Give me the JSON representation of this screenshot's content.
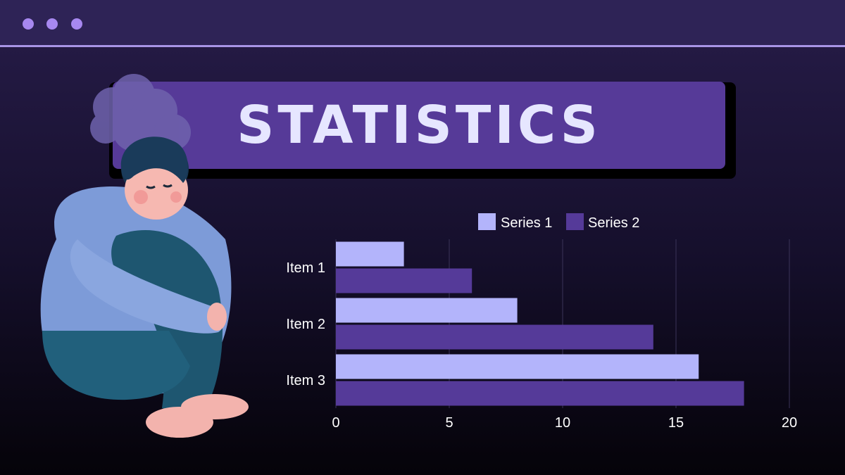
{
  "window": {
    "dots": [
      "dot-1",
      "dot-2",
      "dot-3"
    ]
  },
  "slide": {
    "title": "STATISTICS"
  },
  "colors": {
    "series1": "#b3b4fb",
    "series2": "#553a99",
    "background": "#150f2b",
    "title_box": "#563a98"
  },
  "illustration": {
    "icon": "sad-person-icon"
  },
  "chart_data": {
    "type": "bar",
    "orientation": "horizontal",
    "categories": [
      "Item 1",
      "Item 2",
      "Item 3"
    ],
    "series": [
      {
        "name": "Series 1",
        "values": [
          3,
          8,
          16
        ]
      },
      {
        "name": "Series 2",
        "values": [
          6,
          14,
          18
        ]
      }
    ],
    "xlim": [
      0,
      20
    ],
    "xticks": [
      "0",
      "5",
      "10",
      "15",
      "20"
    ],
    "grid": true,
    "legend": "top"
  }
}
